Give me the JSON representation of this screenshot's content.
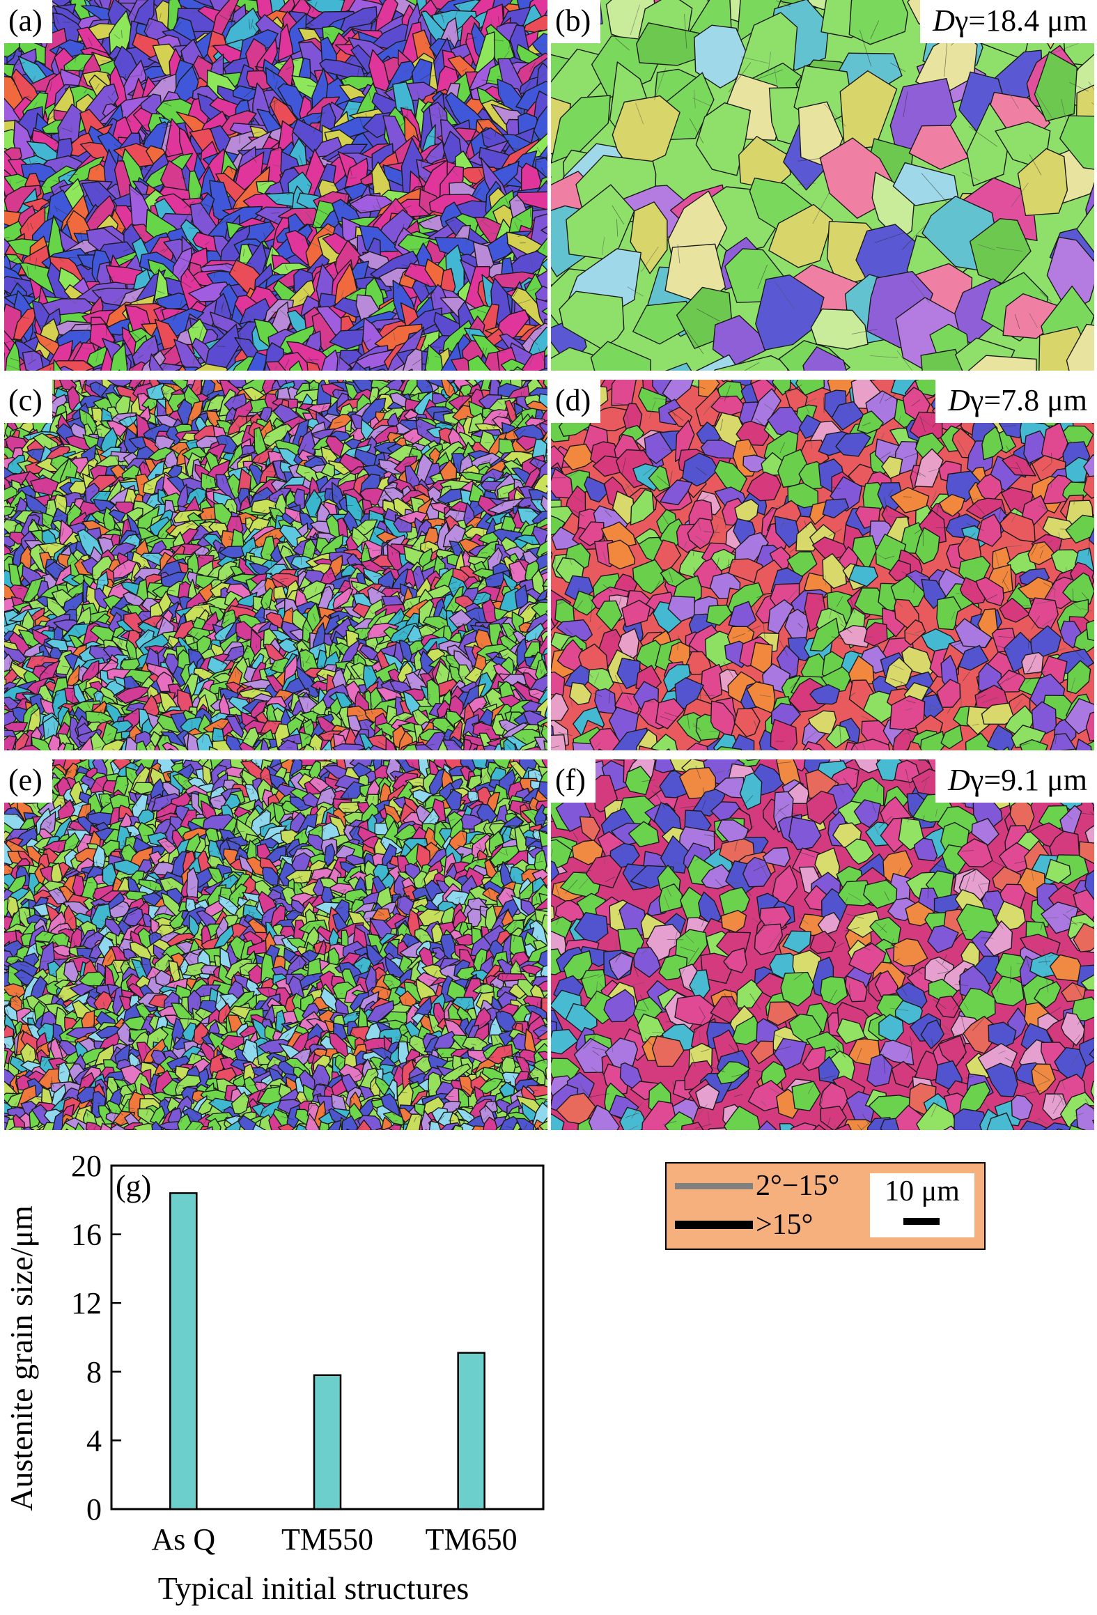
{
  "panels": [
    {
      "id": "a",
      "label": "(a)",
      "d_symbol": "",
      "d_value": "",
      "palette": [
        "#e0369c",
        "#d63a8f",
        "#5a4bd0",
        "#3f57d8",
        "#7f54d6",
        "#a05de0",
        "#43b6d4",
        "#66d548",
        "#8ee65a",
        "#f06a3e",
        "#ea4d57",
        "#d4d052",
        "#b98ad8"
      ],
      "weights": [
        3,
        2,
        3,
        3,
        3,
        1,
        1,
        2,
        1,
        1,
        1,
        1,
        1
      ]
    },
    {
      "id": "b",
      "label": "(b)",
      "d_symbol": "D",
      "d_value": "γ=18.4 μm",
      "palette": [
        "#7ad95c",
        "#8fe06a",
        "#6cc84e",
        "#5a58d2",
        "#8f5fd8",
        "#b47ce0",
        "#e0509c",
        "#d8d66a",
        "#e8e4a0",
        "#63c2cf",
        "#9fd8e8",
        "#c8ec9a",
        "#f07fa4"
      ],
      "weights": [
        4,
        3,
        2,
        1,
        2,
        1,
        1,
        2,
        1,
        1,
        1,
        1,
        1
      ]
    },
    {
      "id": "c",
      "label": "(c)",
      "d_symbol": "",
      "d_value": "",
      "palette": [
        "#6fd64e",
        "#9ae262",
        "#4b57cf",
        "#7b57d6",
        "#d23c96",
        "#e64e6c",
        "#f07a3c",
        "#3bb6cf",
        "#c8e05a",
        "#b98ee0",
        "#e86fc0",
        "#5ec8e0"
      ],
      "weights": [
        3,
        2,
        2,
        2,
        2,
        1,
        1,
        1,
        1,
        1,
        1,
        1
      ]
    },
    {
      "id": "d",
      "label": "(d)",
      "d_symbol": "D",
      "d_value": "γ=7.8 μm",
      "palette": [
        "#e04890",
        "#d6397c",
        "#e85a5e",
        "#6ad04c",
        "#8ee062",
        "#5454d0",
        "#8258d8",
        "#a978e0",
        "#45b8d2",
        "#e8a0c8",
        "#d9d86a",
        "#f2883e"
      ],
      "weights": [
        3,
        2,
        2,
        3,
        1,
        2,
        2,
        1,
        1,
        1,
        1,
        1
      ]
    },
    {
      "id": "e",
      "label": "(e)",
      "d_symbol": "",
      "d_value": "",
      "palette": [
        "#6ed74c",
        "#96e05e",
        "#4d55cf",
        "#7b58d6",
        "#d83c92",
        "#e94e64",
        "#f0783c",
        "#3fb8d0",
        "#c6de5c",
        "#b78de0",
        "#e477c4",
        "#8fd8ee"
      ],
      "weights": [
        3,
        2,
        2,
        2,
        2,
        1,
        1,
        1,
        1,
        1,
        1,
        1
      ]
    },
    {
      "id": "f",
      "label": "(f)",
      "d_symbol": "D",
      "d_value": "γ=9.1 μm",
      "palette": [
        "#e04a94",
        "#d43a7e",
        "#6bd24e",
        "#92e264",
        "#5254cf",
        "#8159d8",
        "#aa78e0",
        "#48bad2",
        "#e86a5c",
        "#f08a42",
        "#d8dc6c",
        "#e6a0d0"
      ],
      "weights": [
        3,
        2,
        3,
        1,
        2,
        2,
        1,
        1,
        1,
        1,
        1,
        1
      ]
    }
  ],
  "legend": {
    "low_angle_label": "2°−15°",
    "low_angle_color": "#808080",
    "high_angle_label": ">15°",
    "high_angle_color": "#000000",
    "scale_label": "10 μm",
    "background": "#f6b07e"
  },
  "chart_data": {
    "type": "bar",
    "panel_label": "(g)",
    "categories": [
      "As Q",
      "TM550",
      "TM650"
    ],
    "values": [
      18.4,
      7.8,
      9.1
    ],
    "xlabel": "Typical initial structures",
    "ylabel": "Austenite grain size/μm",
    "ylim": [
      0,
      20
    ],
    "yticks": [
      0,
      4,
      8,
      12,
      16,
      20
    ],
    "bar_color": "#6dcfcc",
    "grid": false
  }
}
